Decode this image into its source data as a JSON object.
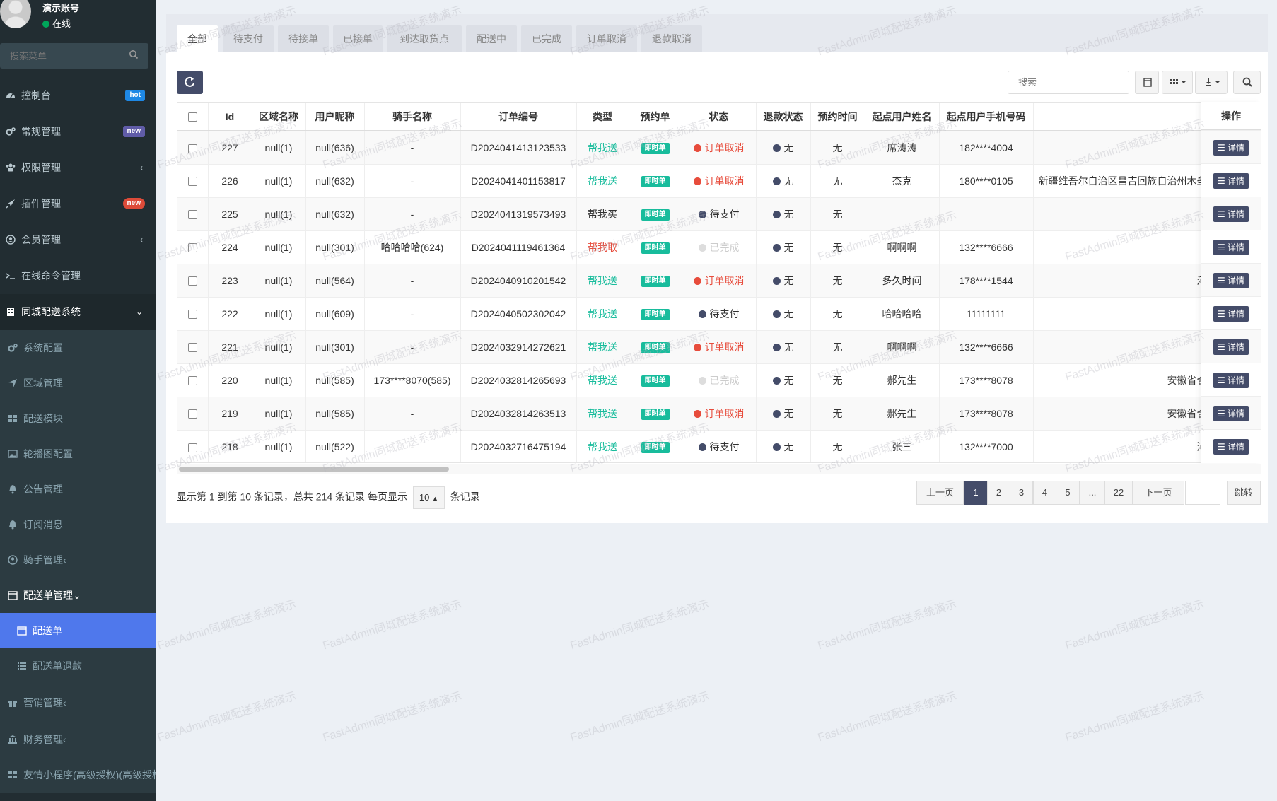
{
  "user": {
    "name": "演示账号",
    "status": "在线"
  },
  "sidebar": {
    "search_placeholder": "搜索菜单",
    "items": [
      {
        "label": "控制台",
        "badge": "hot",
        "icon": "dashboard-icon"
      },
      {
        "label": "常规管理",
        "badge": "new",
        "icon": "cogs-icon"
      },
      {
        "label": "权限管理",
        "icon": "group-icon"
      },
      {
        "label": "插件管理",
        "badge": "new",
        "icon": "rocket-icon"
      },
      {
        "label": "会员管理",
        "icon": "user-circle-icon"
      },
      {
        "label": "在线命令管理",
        "icon": "terminal-icon"
      },
      {
        "label": "同城配送系统",
        "icon": "building-icon"
      }
    ],
    "sub_items": [
      {
        "label": "系统配置",
        "icon": "cogs-icon"
      },
      {
        "label": "区域管理",
        "icon": "location-arrow-icon"
      },
      {
        "label": "配送模块",
        "icon": "th-large-icon"
      },
      {
        "label": "轮播图配置",
        "icon": "image-icon"
      },
      {
        "label": "公告管理",
        "icon": "bell-icon"
      },
      {
        "label": "订阅消息",
        "icon": "bell-icon"
      },
      {
        "label": "骑手管理",
        "icon": "user-circle-icon"
      },
      {
        "label": "配送单管理",
        "icon": "calendar-icon"
      },
      {
        "label": "配送单",
        "icon": "calendar-icon"
      },
      {
        "label": "配送单退款",
        "icon": "list-icon"
      },
      {
        "label": "营销管理",
        "icon": "gift-icon"
      },
      {
        "label": "财务管理",
        "icon": "bank-icon"
      },
      {
        "label": "友情小程序(高级授权)(高级授权",
        "icon": "th-large-icon"
      }
    ]
  },
  "tabs": [
    "全部",
    "待支付",
    "待接单",
    "已接单",
    "到达取货点",
    "配送中",
    "已完成",
    "订单取消",
    "退款取消"
  ],
  "toolbar": {
    "search_placeholder": "搜索"
  },
  "table": {
    "headers": [
      "Id",
      "区域名称",
      "用户昵称",
      "骑手名称",
      "订单编号",
      "类型",
      "预约单",
      "状态",
      "退款状态",
      "预约时间",
      "起点用户姓名",
      "起点用户手机号码",
      "",
      "操作"
    ],
    "rows": [
      {
        "id": "227",
        "area": "null(1)",
        "user": "null(636)",
        "rider": "-",
        "order": "D2024041413123533",
        "type": "帮我送",
        "type_style": "teal",
        "book": "即时单",
        "status": "订单取消",
        "status_style": "cancel",
        "refund": "无",
        "time": "无",
        "name": "席涛涛",
        "phone": "182****4004",
        "addr": ""
      },
      {
        "id": "226",
        "area": "null(1)",
        "user": "null(632)",
        "rider": "-",
        "order": "D2024041401153817",
        "type": "帮我送",
        "type_style": "teal",
        "book": "即时单",
        "status": "订单取消",
        "status_style": "cancel",
        "refund": "无",
        "time": "无",
        "name": "杰克",
        "phone": "180****0105",
        "addr": "新疆维吾尔自治区昌吉回族自治州木垒"
      },
      {
        "id": "225",
        "area": "null(1)",
        "user": "null(632)",
        "rider": "-",
        "order": "D2024041319573493",
        "type": "帮我买",
        "type_style": "dark",
        "book": "即时单",
        "status": "待支付",
        "status_style": "pay",
        "refund": "无",
        "time": "无",
        "name": "",
        "phone": "",
        "addr": ""
      },
      {
        "id": "224",
        "area": "null(1)",
        "user": "null(301)",
        "rider": "哈哈哈哈(624)",
        "order": "D2024041119461364",
        "type": "帮我取",
        "type_style": "red",
        "book": "即时单",
        "status": "已完成",
        "status_style": "done",
        "refund": "无",
        "time": "无",
        "name": "啊啊啊",
        "phone": "132****6666",
        "addr": ""
      },
      {
        "id": "223",
        "area": "null(1)",
        "user": "null(564)",
        "rider": "-",
        "order": "D2024040910201542",
        "type": "帮我送",
        "type_style": "teal",
        "book": "即时单",
        "status": "订单取消",
        "status_style": "cancel",
        "refund": "无",
        "time": "无",
        "name": "多久时间",
        "phone": "178****1544",
        "addr": "河"
      },
      {
        "id": "222",
        "area": "null(1)",
        "user": "null(609)",
        "rider": "-",
        "order": "D2024040502302042",
        "type": "帮我送",
        "type_style": "teal",
        "book": "即时单",
        "status": "待支付",
        "status_style": "pay",
        "refund": "无",
        "time": "无",
        "name": "哈哈哈哈",
        "phone": "11111111",
        "addr": ""
      },
      {
        "id": "221",
        "area": "null(1)",
        "user": "null(301)",
        "rider": "-",
        "order": "D2024032914272621",
        "type": "帮我送",
        "type_style": "teal",
        "book": "即时单",
        "status": "订单取消",
        "status_style": "cancel",
        "refund": "无",
        "time": "无",
        "name": "啊啊啊",
        "phone": "132****6666",
        "addr": ""
      },
      {
        "id": "220",
        "area": "null(1)",
        "user": "null(585)",
        "rider": "173****8070(585)",
        "order": "D2024032814265693",
        "type": "帮我送",
        "type_style": "teal",
        "book": "即时单",
        "status": "已完成",
        "status_style": "done",
        "refund": "无",
        "time": "无",
        "name": "郝先生",
        "phone": "173****8078",
        "addr": "安徽省合"
      },
      {
        "id": "219",
        "area": "null(1)",
        "user": "null(585)",
        "rider": "-",
        "order": "D2024032814263513",
        "type": "帮我送",
        "type_style": "teal",
        "book": "即时单",
        "status": "订单取消",
        "status_style": "cancel",
        "refund": "无",
        "time": "无",
        "name": "郝先生",
        "phone": "173****8078",
        "addr": "安徽省合"
      },
      {
        "id": "218",
        "area": "null(1)",
        "user": "null(522)",
        "rider": "-",
        "order": "D2024032716475194",
        "type": "帮我送",
        "type_style": "teal",
        "book": "即时单",
        "status": "待支付",
        "status_style": "pay",
        "refund": "无",
        "time": "无",
        "name": "张三",
        "phone": "132****7000",
        "addr": "河"
      }
    ],
    "detail_label": "详情"
  },
  "pager": {
    "info_prefix": "显示第 1 到第 10 条记录，总共 214 条记录 每页显示",
    "page_size": "10",
    "info_suffix": "条记录",
    "prev": "上一页",
    "pages": [
      "1",
      "2",
      "3",
      "4",
      "5",
      "...",
      "22"
    ],
    "next": "下一页",
    "jump": "跳转"
  },
  "watermark_text": "FastAdmin同城配送系统演示",
  "colors": {
    "sidebar_bg": "#222d32",
    "active_menu": "#4f78ec",
    "primary_btn": "#444c69",
    "teal": "#18bc9c",
    "red": "#e74c3c"
  }
}
